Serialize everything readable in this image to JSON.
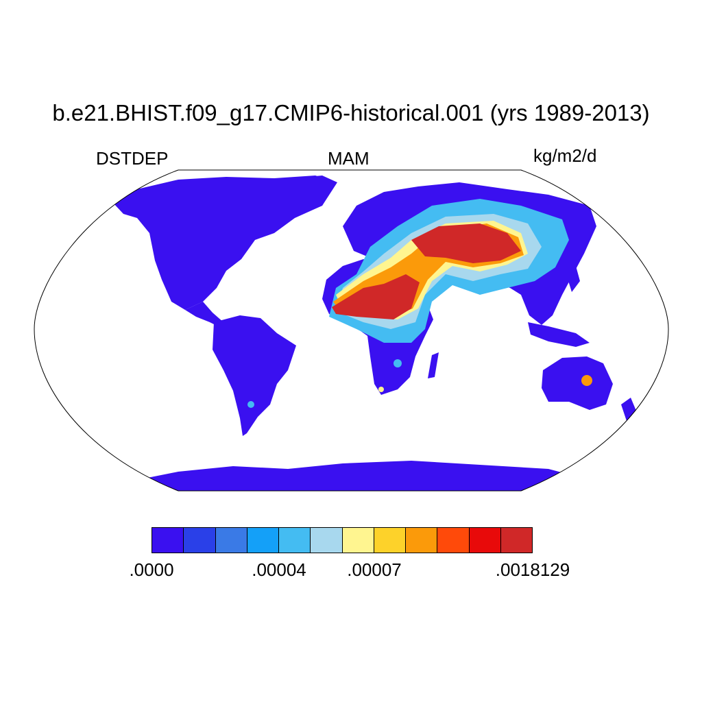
{
  "header": {
    "title": "b.e21.BHIST.f09_g17.CMIP6-historical.001 (yrs 1989-2013)",
    "variable": "DSTDEP",
    "season": "MAM",
    "units": "kg/m2/d"
  },
  "colorbar": {
    "colors": [
      "#3a10f0",
      "#2a40e8",
      "#3a7ae6",
      "#14a0f8",
      "#44bcf2",
      "#a8d8ee",
      "#fff590",
      "#fdd22a",
      "#fb9a0a",
      "#ff4a0a",
      "#e80a0a",
      "#d02828"
    ],
    "labels": [
      ".0000",
      ".00004",
      ".00007",
      ".0018129"
    ]
  },
  "map": {
    "projection": "Robinson",
    "ocean_color": "#ffffff",
    "land_color_low": "#3a10f0"
  }
}
